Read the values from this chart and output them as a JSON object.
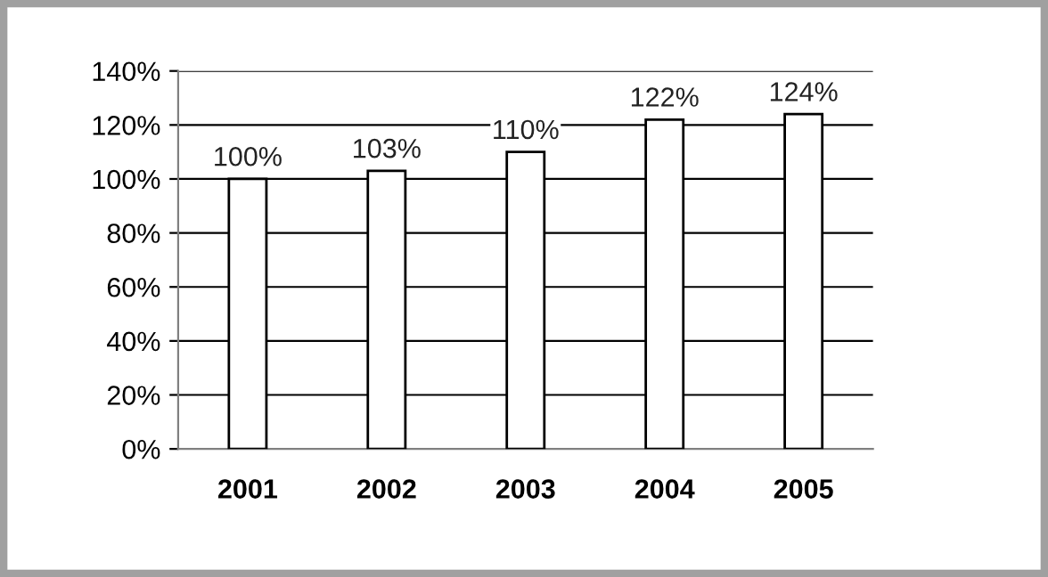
{
  "chart_data": {
    "type": "bar",
    "categories": [
      "2001",
      "2002",
      "2003",
      "2004",
      "2005"
    ],
    "values": [
      100,
      103,
      110,
      122,
      124
    ],
    "value_labels": [
      "100%",
      "103%",
      "110%",
      "122%",
      "124%"
    ],
    "color": "#ffffff",
    "ylim": [
      0,
      140
    ],
    "yticks": [
      {
        "value": 0,
        "label": "0%"
      },
      {
        "value": 20,
        "label": "20%"
      },
      {
        "value": 40,
        "label": "40%"
      },
      {
        "value": 60,
        "label": "60%"
      },
      {
        "value": 80,
        "label": "80%"
      },
      {
        "value": 100,
        "label": "100%"
      },
      {
        "value": 120,
        "label": "120%"
      },
      {
        "value": 140,
        "label": "140%"
      }
    ],
    "grid": "y",
    "legend": false
  }
}
